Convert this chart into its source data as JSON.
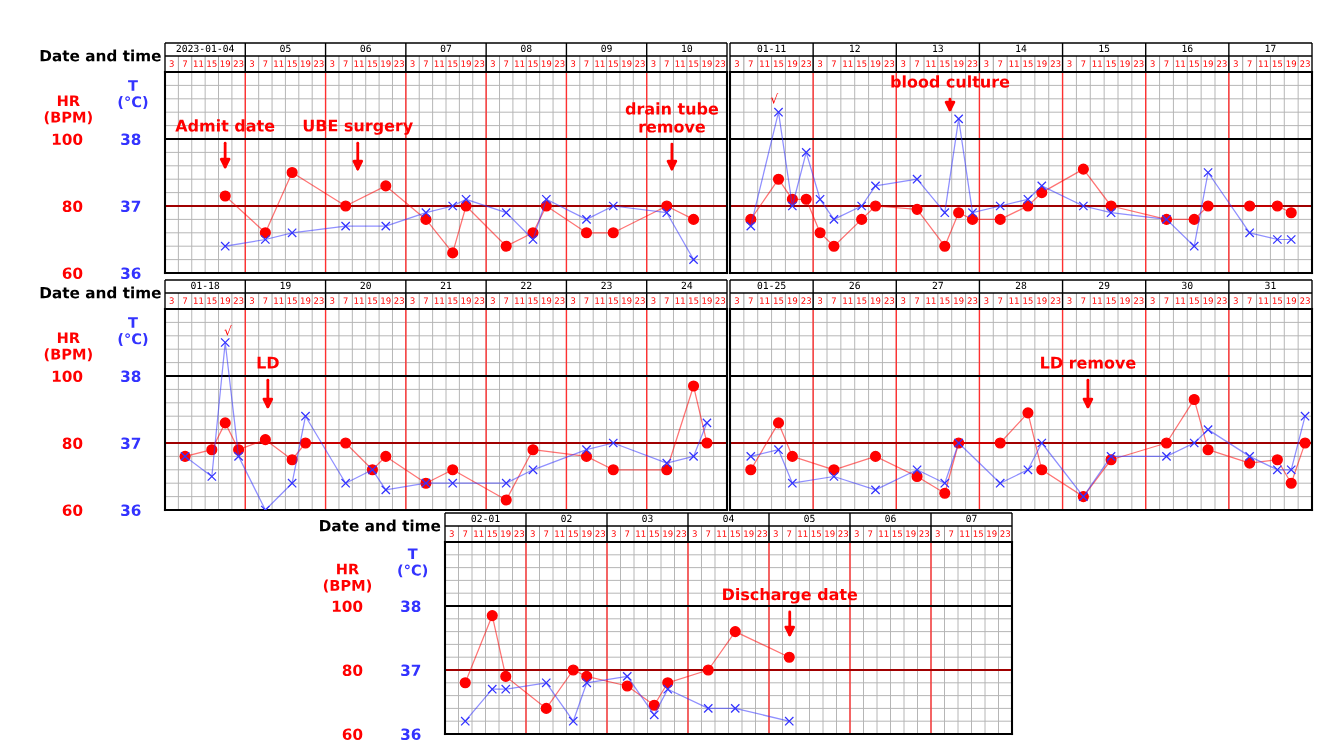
{
  "chart_data": [
    {
      "type": "line",
      "xlabel": "Date and time",
      "ylabel": "HR\n(BPM)",
      "y2label": "T\n(°C)",
      "grid": true,
      "xlim": [
        "2023-01-04T01:00",
        "2023-01-11T01:00"
      ],
      "x2lim": [
        "2023-01-04T01:00",
        "2023-01-11T01:00"
      ],
      "ylim": [
        60,
        120
      ],
      "yticks": [
        60,
        80,
        100
      ],
      "y2lim": [
        36,
        39
      ],
      "y2ticks": [
        36,
        37,
        38
      ],
      "x2ticks": [
        {
          "value": "2023-01-04T13:00",
          "label": "2023-01-04"
        },
        {
          "value": "2023-01-05T13:00",
          "label": "05"
        },
        {
          "value": "2023-01-06T13:00",
          "label": "06"
        },
        {
          "value": "2023-01-07T13:00",
          "label": "07"
        },
        {
          "value": "2023-01-08T13:00",
          "label": "08"
        },
        {
          "value": "2023-01-09T13:00",
          "label": "09"
        },
        {
          "value": "2023-01-10T13:00",
          "label": "10"
        }
      ],
      "xticks": [
        {
          "value": "2023-01-04T03:00",
          "label": "3"
        },
        {
          "value": "2023-01-04T07:00",
          "label": "7"
        },
        {
          "value": "2023-01-04T11:00",
          "label": "11"
        },
        {
          "value": "2023-01-04T15:00",
          "label": "15"
        },
        {
          "value": "2023-01-04T19:00",
          "label": "19"
        },
        {
          "value": "2023-01-04T23:00",
          "label": "23"
        },
        {
          "value": "2023-01-05T03:00",
          "label": "3"
        },
        {
          "value": "2023-01-05T07:00",
          "label": "7"
        },
        {
          "value": "2023-01-05T11:00",
          "label": "11"
        },
        {
          "value": "2023-01-05T15:00",
          "label": "15"
        },
        {
          "value": "2023-01-05T19:00",
          "label": "19"
        },
        {
          "value": "2023-01-05T23:00",
          "label": "23"
        },
        {
          "value": "2023-01-06T03:00",
          "label": "3"
        },
        {
          "value": "2023-01-06T07:00",
          "label": "7"
        },
        {
          "value": "2023-01-06T11:00",
          "label": "11"
        },
        {
          "value": "2023-01-06T15:00",
          "label": "15"
        },
        {
          "value": "2023-01-06T19:00",
          "label": "19"
        },
        {
          "value": "2023-01-06T23:00",
          "label": "23"
        },
        {
          "value": "2023-01-07T03:00",
          "label": "3"
        },
        {
          "value": "2023-01-07T07:00",
          "label": "7"
        },
        {
          "value": "2023-01-07T11:00",
          "label": "11"
        },
        {
          "value": "2023-01-07T15:00",
          "label": "15"
        },
        {
          "value": "2023-01-07T19:00",
          "label": "19"
        },
        {
          "value": "2023-01-07T23:00",
          "label": "23"
        },
        {
          "value": "2023-01-08T03:00",
          "label": "3"
        },
        {
          "value": "2023-01-08T07:00",
          "label": "7"
        },
        {
          "value": "2023-01-08T11:00",
          "label": "11"
        },
        {
          "value": "2023-01-08T15:00",
          "label": "15"
        },
        {
          "value": "2023-01-08T19:00",
          "label": "19"
        },
        {
          "value": "2023-01-08T23:00",
          "label": "23"
        },
        {
          "value": "2023-01-09T03:00",
          "label": "3"
        },
        {
          "value": "2023-01-09T07:00",
          "label": "7"
        },
        {
          "value": "2023-01-09T11:00",
          "label": "11"
        },
        {
          "value": "2023-01-09T15:00",
          "label": "15"
        },
        {
          "value": "2023-01-09T19:00",
          "label": "19"
        },
        {
          "value": "2023-01-09T23:00",
          "label": "23"
        },
        {
          "value": "2023-01-10T03:00",
          "label": "3"
        },
        {
          "value": "2023-01-10T07:00",
          "label": "7"
        },
        {
          "value": "2023-01-10T11:00",
          "label": "11"
        },
        {
          "value": "2023-01-10T15:00",
          "label": "15"
        },
        {
          "value": "2023-01-10T19:00",
          "label": "19"
        },
        {
          "value": "2023-01-10T23:00",
          "label": "23"
        }
      ],
      "ref_lines": [
        {
          "axis": "x",
          "value": "2023-01-05T01:00",
          "color": "#ff3030"
        },
        {
          "axis": "x",
          "value": "2023-01-06T01:00",
          "color": "#ff3030"
        },
        {
          "axis": "x",
          "value": "2023-01-07T01:00",
          "color": "#ff3030"
        },
        {
          "axis": "x",
          "value": "2023-01-08T01:00",
          "color": "#ff3030"
        },
        {
          "axis": "x",
          "value": "2023-01-09T01:00",
          "color": "#ff3030"
        },
        {
          "axis": "x",
          "value": "2023-01-10T01:00",
          "color": "#ff3030"
        },
        {
          "axis": "y",
          "value": 80,
          "color": "#a00000"
        },
        {
          "axis": "y",
          "value": 100,
          "color": "#000000"
        }
      ],
      "series": [
        {
          "axis": "y",
          "color": "#ff0000",
          "marker": "circle",
          "x": [
            "2023-01-04T19:00",
            "2023-01-05T07:00",
            "2023-01-05T15:00",
            "2023-01-06T07:00",
            "2023-01-06T19:00",
            "2023-01-07T07:00",
            "2023-01-07T15:00",
            "2023-01-07T19:00",
            "2023-01-08T07:00",
            "2023-01-08T15:00",
            "2023-01-08T19:00",
            "2023-01-09T07:00",
            "2023-01-09T15:00",
            "2023-01-10T07:00",
            "2023-01-10T15:00"
          ],
          "values": [
            83,
            72,
            90,
            80,
            86,
            76,
            66,
            80,
            68,
            72,
            80,
            72,
            72,
            80,
            76
          ]
        },
        {
          "axis": "y2",
          "color": "#3333ff",
          "marker": "cross",
          "x": [
            "2023-01-04T19:00",
            "2023-01-05T07:00",
            "2023-01-05T15:00",
            "2023-01-06T07:00",
            "2023-01-06T19:00",
            "2023-01-07T07:00",
            "2023-01-07T15:00",
            "2023-01-07T19:00",
            "2023-01-08T07:00",
            "2023-01-08T15:00",
            "2023-01-08T19:00",
            "2023-01-09T07:00",
            "2023-01-09T15:00",
            "2023-01-10T07:00",
            "2023-01-10T15:00"
          ],
          "values": [
            36.4,
            36.5,
            36.6,
            36.7,
            36.7,
            36.9,
            37.0,
            37.1,
            36.9,
            36.5,
            37.1,
            36.8,
            37.0,
            36.9,
            36.2
          ]
        }
      ],
      "annotations": [
        "Admit date",
        "UBE surgery",
        "drain tube\nremove"
      ]
    },
    {
      "type": "line",
      "grid": true,
      "tick_labels": "x",
      "xlim": [
        "2023-01-11T01:00",
        "2023-01-18T01:00"
      ],
      "x2lim": [
        "2023-01-11T01:00",
        "2023-01-18T01:00"
      ],
      "ylim": [
        60,
        120
      ],
      "yticks": [
        60,
        80,
        100
      ],
      "y2lim": [
        36,
        39
      ],
      "y2ticks": [
        36,
        37,
        38
      ],
      "x2ticks": [
        {
          "value": "2023-01-11T13:00",
          "label": "01-11"
        },
        {
          "value": "2023-01-12T13:00",
          "label": "12"
        },
        {
          "value": "2023-01-13T13:00",
          "label": "13"
        },
        {
          "value": "2023-01-14T13:00",
          "label": "14"
        },
        {
          "value": "2023-01-15T13:00",
          "label": "15"
        },
        {
          "value": "2023-01-16T13:00",
          "label": "16"
        },
        {
          "value": "2023-01-17T13:00",
          "label": "17"
        }
      ],
      "xticks": [
        {
          "value": "2023-01-11T03:00",
          "label": "3"
        },
        {
          "value": "2023-01-11T07:00",
          "label": "7"
        },
        {
          "value": "2023-01-11T11:00",
          "label": "11"
        },
        {
          "value": "2023-01-11T15:00",
          "label": "15"
        },
        {
          "value": "2023-01-11T19:00",
          "label": "19"
        },
        {
          "value": "2023-01-11T23:00",
          "label": "23"
        },
        {
          "value": "2023-01-12T03:00",
          "label": "3"
        },
        {
          "value": "2023-01-12T07:00",
          "label": "7"
        },
        {
          "value": "2023-01-12T11:00",
          "label": "11"
        },
        {
          "value": "2023-01-12T15:00",
          "label": "15"
        },
        {
          "value": "2023-01-12T19:00",
          "label": "19"
        },
        {
          "value": "2023-01-12T23:00",
          "label": "23"
        },
        {
          "value": "2023-01-13T03:00",
          "label": "3"
        },
        {
          "value": "2023-01-13T07:00",
          "label": "7"
        },
        {
          "value": "2023-01-13T11:00",
          "label": "11"
        },
        {
          "value": "2023-01-13T15:00",
          "label": "15"
        },
        {
          "value": "2023-01-13T19:00",
          "label": "19"
        },
        {
          "value": "2023-01-13T23:00",
          "label": "23"
        },
        {
          "value": "2023-01-14T03:00",
          "label": "3"
        },
        {
          "value": "2023-01-14T07:00",
          "label": "7"
        },
        {
          "value": "2023-01-14T11:00",
          "label": "11"
        },
        {
          "value": "2023-01-14T15:00",
          "label": "15"
        },
        {
          "value": "2023-01-14T19:00",
          "label": "19"
        },
        {
          "value": "2023-01-14T23:00",
          "label": "23"
        },
        {
          "value": "2023-01-15T03:00",
          "label": "3"
        },
        {
          "value": "2023-01-15T07:00",
          "label": "7"
        },
        {
          "value": "2023-01-15T11:00",
          "label": "11"
        },
        {
          "value": "2023-01-15T15:00",
          "label": "15"
        },
        {
          "value": "2023-01-15T19:00",
          "label": "19"
        },
        {
          "value": "2023-01-15T23:00",
          "label": "23"
        },
        {
          "value": "2023-01-16T03:00",
          "label": "3"
        },
        {
          "value": "2023-01-16T07:00",
          "label": "7"
        },
        {
          "value": "2023-01-16T11:00",
          "label": "11"
        },
        {
          "value": "2023-01-16T15:00",
          "label": "15"
        },
        {
          "value": "2023-01-16T19:00",
          "label": "19"
        },
        {
          "value": "2023-01-16T23:00",
          "label": "23"
        },
        {
          "value": "2023-01-17T03:00",
          "label": "3"
        },
        {
          "value": "2023-01-17T07:00",
          "label": "7"
        },
        {
          "value": "2023-01-17T11:00",
          "label": "11"
        },
        {
          "value": "2023-01-17T15:00",
          "label": "15"
        },
        {
          "value": "2023-01-17T19:00",
          "label": "19"
        },
        {
          "value": "2023-01-17T23:00",
          "label": "23"
        }
      ],
      "ref_lines": [
        {
          "axis": "x",
          "value": "2023-01-12T01:00",
          "color": "#ff3030"
        },
        {
          "axis": "x",
          "value": "2023-01-13T01:00",
          "color": "#ff3030"
        },
        {
          "axis": "x",
          "value": "2023-01-14T01:00",
          "color": "#ff3030"
        },
        {
          "axis": "x",
          "value": "2023-01-15T01:00",
          "color": "#ff3030"
        },
        {
          "axis": "x",
          "value": "2023-01-16T01:00",
          "color": "#ff3030"
        },
        {
          "axis": "x",
          "value": "2023-01-17T01:00",
          "color": "#ff3030"
        },
        {
          "axis": "y",
          "value": 80,
          "color": "#a00000"
        },
        {
          "axis": "y",
          "value": 100,
          "color": "#000000"
        }
      ],
      "series": [
        {
          "axis": "y",
          "color": "#ff0000",
          "marker": "circle",
          "x": [
            "2023-01-11T07:00",
            "2023-01-11T15:00",
            "2023-01-11T19:00",
            "2023-01-11T23:00",
            "2023-01-12T03:00",
            "2023-01-12T07:00",
            "2023-01-12T15:00",
            "2023-01-12T19:00",
            "2023-01-13T07:00",
            "2023-01-13T15:00",
            "2023-01-13T19:00",
            "2023-01-13T23:00",
            "2023-01-14T07:00",
            "2023-01-14T15:00",
            "2023-01-14T19:00",
            "2023-01-15T07:00",
            "2023-01-15T15:00",
            "2023-01-16T07:00",
            "2023-01-16T15:00",
            "2023-01-16T19:00",
            "2023-01-17T07:00",
            "2023-01-17T15:00",
            "2023-01-17T19:00"
          ],
          "values": [
            76,
            88,
            82,
            82,
            72,
            68,
            76,
            80,
            79,
            68,
            78,
            76,
            76,
            80,
            84,
            91,
            80,
            76,
            76,
            80,
            80,
            80,
            78
          ]
        },
        {
          "axis": "y2",
          "color": "#3333ff",
          "marker": "cross",
          "x": [
            "2023-01-11T07:00",
            "2023-01-11T15:00",
            "2023-01-11T19:00",
            "2023-01-11T23:00",
            "2023-01-12T03:00",
            "2023-01-12T07:00",
            "2023-01-12T15:00",
            "2023-01-12T19:00",
            "2023-01-13T07:00",
            "2023-01-13T15:00",
            "2023-01-13T19:00",
            "2023-01-13T23:00",
            "2023-01-14T07:00",
            "2023-01-14T15:00",
            "2023-01-14T19:00",
            "2023-01-15T07:00",
            "2023-01-15T15:00",
            "2023-01-16T07:00",
            "2023-01-16T15:00",
            "2023-01-16T19:00",
            "2023-01-17T07:00",
            "2023-01-17T15:00",
            "2023-01-17T19:00"
          ],
          "values": [
            36.7,
            38.4,
            37.0,
            37.8,
            37.1,
            36.8,
            37.0,
            37.3,
            37.4,
            36.9,
            38.3,
            36.9,
            37.0,
            37.1,
            37.3,
            37.0,
            36.9,
            36.8,
            36.4,
            37.5,
            36.6,
            36.5,
            36.5
          ]
        }
      ],
      "annotations": [
        "√",
        "blood culture"
      ]
    },
    {
      "type": "line",
      "xlabel": "Date and time",
      "ylabel": "HR\n(BPM)",
      "y2label": "T\n(°C)",
      "grid": true,
      "xlim": [
        "2023-01-18T01:00",
        "2023-01-25T01:00"
      ],
      "x2lim": [
        "2023-01-18T01:00",
        "2023-01-25T01:00"
      ],
      "ylim": [
        60,
        120
      ],
      "yticks": [
        60,
        80,
        100
      ],
      "y2lim": [
        36,
        39
      ],
      "y2ticks": [
        36,
        37,
        38
      ],
      "x2ticks": [
        {
          "value": "2023-01-18T13:00",
          "label": "01-18"
        },
        {
          "value": "2023-01-19T13:00",
          "label": "19"
        },
        {
          "value": "2023-01-20T13:00",
          "label": "20"
        },
        {
          "value": "2023-01-21T13:00",
          "label": "21"
        },
        {
          "value": "2023-01-22T13:00",
          "label": "22"
        },
        {
          "value": "2023-01-23T13:00",
          "label": "23"
        },
        {
          "value": "2023-01-24T13:00",
          "label": "24"
        }
      ],
      "xticks": [
        {
          "value": "2023-01-18T03:00",
          "label": "3"
        },
        {
          "value": "2023-01-18T07:00",
          "label": "7"
        },
        {
          "value": "2023-01-18T11:00",
          "label": "11"
        },
        {
          "value": "2023-01-18T15:00",
          "label": "15"
        },
        {
          "value": "2023-01-18T19:00",
          "label": "19"
        },
        {
          "value": "2023-01-18T23:00",
          "label": "23"
        },
        {
          "value": "2023-01-19T03:00",
          "label": "3"
        },
        {
          "value": "2023-01-19T07:00",
          "label": "7"
        },
        {
          "value": "2023-01-19T11:00",
          "label": "11"
        },
        {
          "value": "2023-01-19T15:00",
          "label": "15"
        },
        {
          "value": "2023-01-19T19:00",
          "label": "19"
        },
        {
          "value": "2023-01-19T23:00",
          "label": "23"
        },
        {
          "value": "2023-01-20T03:00",
          "label": "3"
        },
        {
          "value": "2023-01-20T07:00",
          "label": "7"
        },
        {
          "value": "2023-01-20T11:00",
          "label": "11"
        },
        {
          "value": "2023-01-20T15:00",
          "label": "15"
        },
        {
          "value": "2023-01-20T19:00",
          "label": "19"
        },
        {
          "value": "2023-01-20T23:00",
          "label": "23"
        },
        {
          "value": "2023-01-21T03:00",
          "label": "3"
        },
        {
          "value": "2023-01-21T07:00",
          "label": "7"
        },
        {
          "value": "2023-01-21T11:00",
          "label": "11"
        },
        {
          "value": "2023-01-21T15:00",
          "label": "15"
        },
        {
          "value": "2023-01-21T19:00",
          "label": "19"
        },
        {
          "value": "2023-01-21T23:00",
          "label": "23"
        },
        {
          "value": "2023-01-22T03:00",
          "label": "3"
        },
        {
          "value": "2023-01-22T07:00",
          "label": "7"
        },
        {
          "value": "2023-01-22T11:00",
          "label": "11"
        },
        {
          "value": "2023-01-22T15:00",
          "label": "15"
        },
        {
          "value": "2023-01-22T19:00",
          "label": "19"
        },
        {
          "value": "2023-01-22T23:00",
          "label": "23"
        },
        {
          "value": "2023-01-23T03:00",
          "label": "3"
        },
        {
          "value": "2023-01-23T07:00",
          "label": "7"
        },
        {
          "value": "2023-01-23T11:00",
          "label": "11"
        },
        {
          "value": "2023-01-23T15:00",
          "label": "15"
        },
        {
          "value": "2023-01-23T19:00",
          "label": "19"
        },
        {
          "value": "2023-01-23T23:00",
          "label": "23"
        },
        {
          "value": "2023-01-24T03:00",
          "label": "3"
        },
        {
          "value": "2023-01-24T07:00",
          "label": "7"
        },
        {
          "value": "2023-01-24T11:00",
          "label": "11"
        },
        {
          "value": "2023-01-24T15:00",
          "label": "15"
        },
        {
          "value": "2023-01-24T19:00",
          "label": "19"
        },
        {
          "value": "2023-01-24T23:00",
          "label": "23"
        }
      ],
      "ref_lines": [
        {
          "axis": "x",
          "value": "2023-01-19T01:00",
          "color": "#ff3030"
        },
        {
          "axis": "x",
          "value": "2023-01-20T01:00",
          "color": "#ff3030"
        },
        {
          "axis": "x",
          "value": "2023-01-21T01:00",
          "color": "#ff3030"
        },
        {
          "axis": "x",
          "value": "2023-01-22T01:00",
          "color": "#ff3030"
        },
        {
          "axis": "x",
          "value": "2023-01-23T01:00",
          "color": "#ff3030"
        },
        {
          "axis": "x",
          "value": "2023-01-24T01:00",
          "color": "#ff3030"
        },
        {
          "axis": "y",
          "value": 80,
          "color": "#a00000"
        },
        {
          "axis": "y",
          "value": 100,
          "color": "#000000"
        }
      ],
      "series": [
        {
          "axis": "y",
          "color": "#ff0000",
          "marker": "circle",
          "x": [
            "2023-01-18T07:00",
            "2023-01-18T15:00",
            "2023-01-18T19:00",
            "2023-01-18T23:00",
            "2023-01-19T07:00",
            "2023-01-19T15:00",
            "2023-01-19T19:00",
            "2023-01-20T07:00",
            "2023-01-20T15:00",
            "2023-01-20T19:00",
            "2023-01-21T07:00",
            "2023-01-21T15:00",
            "2023-01-22T07:00",
            "2023-01-22T15:00",
            "2023-01-23T07:00",
            "2023-01-23T15:00",
            "2023-01-24T07:00",
            "2023-01-24T15:00",
            "2023-01-24T19:00"
          ],
          "values": [
            76,
            78,
            86,
            78,
            81,
            75,
            80,
            80,
            72,
            76,
            68,
            72,
            63,
            78,
            76,
            72,
            72,
            97,
            80
          ]
        },
        {
          "axis": "y2",
          "color": "#3333ff",
          "marker": "cross",
          "x": [
            "2023-01-18T07:00",
            "2023-01-18T15:00",
            "2023-01-18T19:00",
            "2023-01-18T23:00",
            "2023-01-19T07:00",
            "2023-01-19T15:00",
            "2023-01-19T19:00",
            "2023-01-20T07:00",
            "2023-01-20T15:00",
            "2023-01-20T19:00",
            "2023-01-21T07:00",
            "2023-01-21T15:00",
            "2023-01-22T07:00",
            "2023-01-22T15:00",
            "2023-01-23T07:00",
            "2023-01-23T15:00",
            "2023-01-24T07:00",
            "2023-01-24T15:00",
            "2023-01-24T19:00"
          ],
          "values": [
            36.8,
            36.5,
            38.5,
            36.8,
            36.0,
            36.4,
            37.4,
            36.4,
            36.6,
            36.3,
            36.4,
            36.4,
            36.4,
            36.6,
            36.9,
            37.0,
            36.7,
            36.8,
            37.3
          ]
        }
      ],
      "annotations": [
        "√",
        "LD"
      ]
    },
    {
      "type": "line",
      "grid": true,
      "tick_labels": "x",
      "xlim": [
        "2023-01-25T01:00",
        "2023-02-01T01:00"
      ],
      "x2lim": [
        "2023-01-25T01:00",
        "2023-02-01T01:00"
      ],
      "ylim": [
        60,
        120
      ],
      "yticks": [
        60,
        80,
        100
      ],
      "y2lim": [
        36,
        39
      ],
      "y2ticks": [
        36,
        37,
        38
      ],
      "x2ticks": [
        {
          "value": "2023-01-25T13:00",
          "label": "01-25"
        },
        {
          "value": "2023-01-26T13:00",
          "label": "26"
        },
        {
          "value": "2023-01-27T13:00",
          "label": "27"
        },
        {
          "value": "2023-01-28T13:00",
          "label": "28"
        },
        {
          "value": "2023-01-29T13:00",
          "label": "29"
        },
        {
          "value": "2023-01-30T13:00",
          "label": "30"
        },
        {
          "value": "2023-01-31T13:00",
          "label": "31"
        }
      ],
      "xticks": [
        {
          "value": "2023-01-25T03:00",
          "label": "3"
        },
        {
          "value": "2023-01-25T07:00",
          "label": "7"
        },
        {
          "value": "2023-01-25T11:00",
          "label": "11"
        },
        {
          "value": "2023-01-25T15:00",
          "label": "15"
        },
        {
          "value": "2023-01-25T19:00",
          "label": "19"
        },
        {
          "value": "2023-01-25T23:00",
          "label": "23"
        },
        {
          "value": "2023-01-26T03:00",
          "label": "3"
        },
        {
          "value": "2023-01-26T07:00",
          "label": "7"
        },
        {
          "value": "2023-01-26T11:00",
          "label": "11"
        },
        {
          "value": "2023-01-26T15:00",
          "label": "15"
        },
        {
          "value": "2023-01-26T19:00",
          "label": "19"
        },
        {
          "value": "2023-01-26T23:00",
          "label": "23"
        },
        {
          "value": "2023-01-27T03:00",
          "label": "3"
        },
        {
          "value": "2023-01-27T07:00",
          "label": "7"
        },
        {
          "value": "2023-01-27T11:00",
          "label": "11"
        },
        {
          "value": "2023-01-27T15:00",
          "label": "15"
        },
        {
          "value": "2023-01-27T19:00",
          "label": "19"
        },
        {
          "value": "2023-01-27T23:00",
          "label": "23"
        },
        {
          "value": "2023-01-28T03:00",
          "label": "3"
        },
        {
          "value": "2023-01-28T07:00",
          "label": "7"
        },
        {
          "value": "2023-01-28T11:00",
          "label": "11"
        },
        {
          "value": "2023-01-28T15:00",
          "label": "15"
        },
        {
          "value": "2023-01-28T19:00",
          "label": "19"
        },
        {
          "value": "2023-01-28T23:00",
          "label": "23"
        },
        {
          "value": "2023-01-29T03:00",
          "label": "3"
        },
        {
          "value": "2023-01-29T07:00",
          "label": "7"
        },
        {
          "value": "2023-01-29T11:00",
          "label": "11"
        },
        {
          "value": "2023-01-29T15:00",
          "label": "15"
        },
        {
          "value": "2023-01-29T19:00",
          "label": "19"
        },
        {
          "value": "2023-01-29T23:00",
          "label": "23"
        },
        {
          "value": "2023-01-30T03:00",
          "label": "3"
        },
        {
          "value": "2023-01-30T07:00",
          "label": "7"
        },
        {
          "value": "2023-01-30T11:00",
          "label": "11"
        },
        {
          "value": "2023-01-30T15:00",
          "label": "15"
        },
        {
          "value": "2023-01-30T19:00",
          "label": "19"
        },
        {
          "value": "2023-01-30T23:00",
          "label": "23"
        },
        {
          "value": "2023-01-31T03:00",
          "label": "3"
        },
        {
          "value": "2023-01-31T07:00",
          "label": "7"
        },
        {
          "value": "2023-01-31T11:00",
          "label": "11"
        },
        {
          "value": "2023-01-31T15:00",
          "label": "15"
        },
        {
          "value": "2023-01-31T19:00",
          "label": "19"
        },
        {
          "value": "2023-01-31T23:00",
          "label": "23"
        }
      ],
      "ref_lines": [
        {
          "axis": "x",
          "value": "2023-01-26T01:00",
          "color": "#ff3030"
        },
        {
          "axis": "x",
          "value": "2023-01-27T01:00",
          "color": "#ff3030"
        },
        {
          "axis": "x",
          "value": "2023-01-28T01:00",
          "color": "#ff3030"
        },
        {
          "axis": "x",
          "value": "2023-01-29T01:00",
          "color": "#ff3030"
        },
        {
          "axis": "x",
          "value": "2023-01-30T01:00",
          "color": "#ff3030"
        },
        {
          "axis": "x",
          "value": "2023-01-31T01:00",
          "color": "#ff3030"
        },
        {
          "axis": "y",
          "value": 80,
          "color": "#a00000"
        },
        {
          "axis": "y",
          "value": 100,
          "color": "#000000"
        }
      ],
      "series": [
        {
          "axis": "y",
          "color": "#ff0000",
          "marker": "circle",
          "x": [
            "2023-01-25T07:00",
            "2023-01-25T15:00",
            "2023-01-25T19:00",
            "2023-01-26T07:00",
            "2023-01-26T19:00",
            "2023-01-27T07:00",
            "2023-01-27T15:00",
            "2023-01-27T19:00",
            "2023-01-28T07:00",
            "2023-01-28T15:00",
            "2023-01-28T19:00",
            "2023-01-29T07:00",
            "2023-01-29T15:00",
            "2023-01-30T07:00",
            "2023-01-30T15:00",
            "2023-01-30T19:00",
            "2023-01-31T07:00",
            "2023-01-31T15:00",
            "2023-01-31T19:00",
            "2023-01-31T23:00"
          ],
          "values": [
            72,
            86,
            76,
            72,
            76,
            70,
            65,
            80,
            80,
            89,
            72,
            64,
            75,
            80,
            93,
            78,
            74,
            75,
            68,
            80
          ]
        },
        {
          "axis": "y2",
          "color": "#3333ff",
          "marker": "cross",
          "x": [
            "2023-01-25T07:00",
            "2023-01-25T15:00",
            "2023-01-25T19:00",
            "2023-01-26T07:00",
            "2023-01-26T19:00",
            "2023-01-27T07:00",
            "2023-01-27T15:00",
            "2023-01-27T19:00",
            "2023-01-28T07:00",
            "2023-01-28T15:00",
            "2023-01-28T19:00",
            "2023-01-29T07:00",
            "2023-01-29T15:00",
            "2023-01-30T07:00",
            "2023-01-30T15:00",
            "2023-01-30T19:00",
            "2023-01-31T07:00",
            "2023-01-31T15:00",
            "2023-01-31T19:00",
            "2023-01-31T23:00"
          ],
          "values": [
            36.8,
            36.9,
            36.4,
            36.5,
            36.3,
            36.6,
            36.4,
            37.0,
            36.4,
            36.6,
            37.0,
            36.2,
            36.8,
            36.8,
            37.0,
            37.2,
            36.8,
            36.6,
            36.6,
            37.4
          ]
        }
      ],
      "annotations": [
        "LD remove"
      ]
    },
    {
      "type": "line",
      "xlabel": "Date and time",
      "ylabel": "HR\n(BPM)",
      "y2label": "T\n(°C)",
      "grid": true,
      "xlim": [
        "2023-02-01T01:00",
        "2023-02-08T01:00"
      ],
      "x2lim": [
        "2023-02-01T01:00",
        "2023-02-08T01:00"
      ],
      "ylim": [
        60,
        120
      ],
      "yticks": [
        60,
        80,
        100
      ],
      "y2lim": [
        36,
        39
      ],
      "y2ticks": [
        36,
        37,
        38
      ],
      "x2ticks": [
        {
          "value": "2023-02-01T13:00",
          "label": "02-01"
        },
        {
          "value": "2023-02-02T13:00",
          "label": "02"
        },
        {
          "value": "2023-02-03T13:00",
          "label": "03"
        },
        {
          "value": "2023-02-04T13:00",
          "label": "04"
        },
        {
          "value": "2023-02-05T13:00",
          "label": "05"
        },
        {
          "value": "2023-02-06T13:00",
          "label": "06"
        },
        {
          "value": "2023-02-07T13:00",
          "label": "07"
        }
      ],
      "xticks": [
        {
          "value": "2023-02-01T03:00",
          "label": "3"
        },
        {
          "value": "2023-02-01T07:00",
          "label": "7"
        },
        {
          "value": "2023-02-01T11:00",
          "label": "11"
        },
        {
          "value": "2023-02-01T15:00",
          "label": "15"
        },
        {
          "value": "2023-02-01T19:00",
          "label": "19"
        },
        {
          "value": "2023-02-01T23:00",
          "label": "23"
        },
        {
          "value": "2023-02-02T03:00",
          "label": "3"
        },
        {
          "value": "2023-02-02T07:00",
          "label": "7"
        },
        {
          "value": "2023-02-02T11:00",
          "label": "11"
        },
        {
          "value": "2023-02-02T15:00",
          "label": "15"
        },
        {
          "value": "2023-02-02T19:00",
          "label": "19"
        },
        {
          "value": "2023-02-02T23:00",
          "label": "23"
        },
        {
          "value": "2023-02-03T03:00",
          "label": "3"
        },
        {
          "value": "2023-02-03T07:00",
          "label": "7"
        },
        {
          "value": "2023-02-03T11:00",
          "label": "11"
        },
        {
          "value": "2023-02-03T15:00",
          "label": "15"
        },
        {
          "value": "2023-02-03T19:00",
          "label": "19"
        },
        {
          "value": "2023-02-03T23:00",
          "label": "23"
        },
        {
          "value": "2023-02-04T03:00",
          "label": "3"
        },
        {
          "value": "2023-02-04T07:00",
          "label": "7"
        },
        {
          "value": "2023-02-04T11:00",
          "label": "11"
        },
        {
          "value": "2023-02-04T15:00",
          "label": "15"
        },
        {
          "value": "2023-02-04T19:00",
          "label": "19"
        },
        {
          "value": "2023-02-04T23:00",
          "label": "23"
        },
        {
          "value": "2023-02-05T03:00",
          "label": "3"
        },
        {
          "value": "2023-02-05T07:00",
          "label": "7"
        },
        {
          "value": "2023-02-05T11:00",
          "label": "11"
        },
        {
          "value": "2023-02-05T15:00",
          "label": "15"
        },
        {
          "value": "2023-02-05T19:00",
          "label": "19"
        },
        {
          "value": "2023-02-05T23:00",
          "label": "23"
        },
        {
          "value": "2023-02-06T03:00",
          "label": "3"
        },
        {
          "value": "2023-02-06T07:00",
          "label": "7"
        },
        {
          "value": "2023-02-06T11:00",
          "label": "11"
        },
        {
          "value": "2023-02-06T15:00",
          "label": "15"
        },
        {
          "value": "2023-02-06T19:00",
          "label": "19"
        },
        {
          "value": "2023-02-06T23:00",
          "label": "23"
        },
        {
          "value": "2023-02-07T03:00",
          "label": "3"
        },
        {
          "value": "2023-02-07T07:00",
          "label": "7"
        },
        {
          "value": "2023-02-07T11:00",
          "label": "11"
        },
        {
          "value": "2023-02-07T15:00",
          "label": "15"
        },
        {
          "value": "2023-02-07T19:00",
          "label": "19"
        },
        {
          "value": "2023-02-07T23:00",
          "label": "23"
        }
      ],
      "ref_lines": [
        {
          "axis": "x",
          "value": "2023-02-02T01:00",
          "color": "#ff3030"
        },
        {
          "axis": "x",
          "value": "2023-02-03T01:00",
          "color": "#ff3030"
        },
        {
          "axis": "x",
          "value": "2023-02-04T01:00",
          "color": "#ff3030"
        },
        {
          "axis": "x",
          "value": "2023-02-05T01:00",
          "color": "#ff3030"
        },
        {
          "axis": "x",
          "value": "2023-02-06T01:00",
          "color": "#ff3030"
        },
        {
          "axis": "x",
          "value": "2023-02-07T01:00",
          "color": "#ff3030"
        },
        {
          "axis": "y",
          "value": 80,
          "color": "#a00000"
        },
        {
          "axis": "y",
          "value": 100,
          "color": "#000000"
        }
      ],
      "series": [
        {
          "axis": "y",
          "color": "#ff0000",
          "marker": "circle",
          "x": [
            "2023-02-01T07:00",
            "2023-02-01T15:00",
            "2023-02-01T19:00",
            "2023-02-02T07:00",
            "2023-02-02T15:00",
            "2023-02-02T19:00",
            "2023-02-03T07:00",
            "2023-02-03T15:00",
            "2023-02-03T19:00",
            "2023-02-04T07:00",
            "2023-02-04T15:00",
            "2023-02-05T07:00"
          ],
          "values": [
            76,
            97,
            78,
            68,
            80,
            78,
            75,
            69,
            76,
            80,
            92,
            84
          ]
        },
        {
          "axis": "y2",
          "color": "#3333ff",
          "marker": "cross",
          "x": [
            "2023-02-01T07:00",
            "2023-02-01T15:00",
            "2023-02-01T19:00",
            "2023-02-02T07:00",
            "2023-02-02T15:00",
            "2023-02-02T19:00",
            "2023-02-03T07:00",
            "2023-02-03T15:00",
            "2023-02-03T19:00",
            "2023-02-04T07:00",
            "2023-02-04T15:00",
            "2023-02-05T07:00"
          ],
          "values": [
            36.2,
            36.7,
            36.7,
            36.8,
            36.2,
            36.8,
            36.9,
            36.3,
            36.7,
            36.4,
            36.4,
            36.2
          ]
        }
      ],
      "annotations": [
        "Discharge date"
      ]
    }
  ]
}
